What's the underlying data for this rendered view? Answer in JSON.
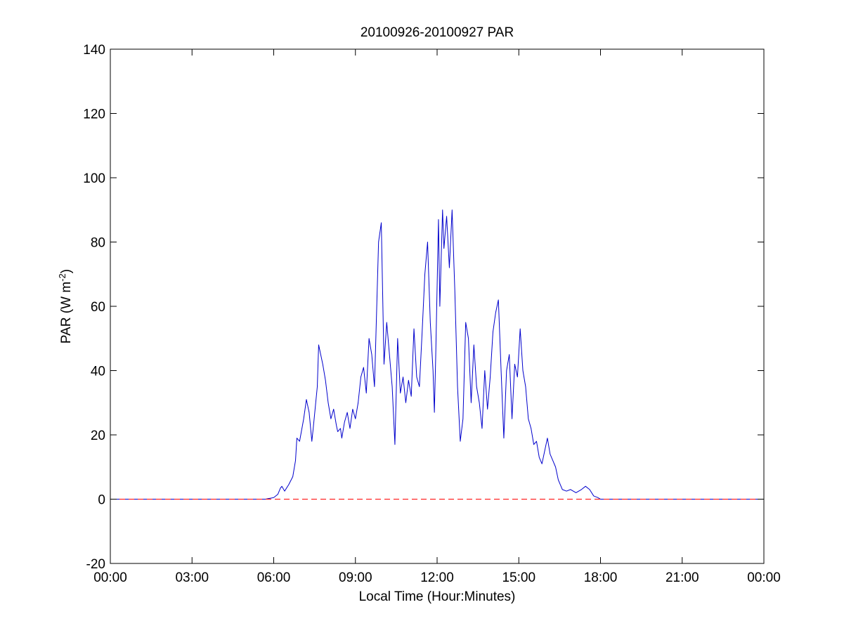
{
  "chart_data": {
    "type": "line",
    "title": "20100926-20100927 PAR",
    "xlabel": "Local Time (Hour:Minutes)",
    "ylabel": {
      "text": "PAR (W m",
      "superscript": "-2",
      "suffix": ")"
    },
    "xlim": [
      0,
      24
    ],
    "ylim": [
      -20,
      140
    ],
    "x_unit": "hours",
    "xticks": [
      {
        "value": 0,
        "label": "00:00"
      },
      {
        "value": 3,
        "label": "03:00"
      },
      {
        "value": 6,
        "label": "06:00"
      },
      {
        "value": 9,
        "label": "09:00"
      },
      {
        "value": 12,
        "label": "12:00"
      },
      {
        "value": 15,
        "label": "15:00"
      },
      {
        "value": 18,
        "label": "18:00"
      },
      {
        "value": 21,
        "label": "21:00"
      },
      {
        "value": 24,
        "label": "00:00"
      }
    ],
    "yticks": [
      {
        "value": -20,
        "label": "-20"
      },
      {
        "value": 0,
        "label": "0"
      },
      {
        "value": 20,
        "label": "20"
      },
      {
        "value": 40,
        "label": "40"
      },
      {
        "value": 60,
        "label": "60"
      },
      {
        "value": 80,
        "label": "80"
      },
      {
        "value": 100,
        "label": "100"
      },
      {
        "value": 120,
        "label": "120"
      },
      {
        "value": 140,
        "label": "140"
      }
    ],
    "grid": false,
    "reference_line": {
      "y": 0,
      "style": "dashed",
      "color": "#ff0000"
    },
    "series": [
      {
        "color": "#0000cc",
        "x": [
          0,
          5.7,
          6.0,
          6.15,
          6.25,
          6.3,
          6.4,
          6.55,
          6.7,
          6.8,
          6.85,
          6.95,
          7.1,
          7.2,
          7.3,
          7.4,
          7.45,
          7.6,
          7.65,
          7.8,
          7.9,
          8.0,
          8.1,
          8.2,
          8.3,
          8.35,
          8.45,
          8.5,
          8.6,
          8.7,
          8.8,
          8.9,
          9.0,
          9.1,
          9.2,
          9.3,
          9.4,
          9.5,
          9.6,
          9.7,
          9.8,
          9.85,
          9.95,
          10.05,
          10.15,
          10.25,
          10.35,
          10.45,
          10.55,
          10.65,
          10.75,
          10.85,
          10.95,
          11.05,
          11.15,
          11.25,
          11.35,
          11.45,
          11.55,
          11.65,
          11.75,
          11.85,
          11.9,
          11.95,
          12.05,
          12.1,
          12.2,
          12.25,
          12.35,
          12.45,
          12.55,
          12.65,
          12.75,
          12.85,
          12.95,
          13.05,
          13.15,
          13.25,
          13.35,
          13.45,
          13.55,
          13.65,
          13.75,
          13.85,
          13.95,
          14.05,
          14.15,
          14.25,
          14.35,
          14.45,
          14.55,
          14.65,
          14.75,
          14.85,
          14.95,
          15.05,
          15.15,
          15.25,
          15.35,
          15.45,
          15.55,
          15.65,
          15.75,
          15.85,
          15.95,
          16.05,
          16.15,
          16.25,
          16.35,
          16.45,
          16.6,
          16.75,
          16.9,
          17.1,
          17.3,
          17.45,
          17.6,
          17.75,
          17.9,
          18.0,
          18.2,
          24
        ],
        "y": [
          0,
          0,
          0.5,
          1.5,
          3.5,
          4,
          2.5,
          4.5,
          7,
          12,
          19,
          18,
          25,
          31,
          27,
          18,
          22,
          35,
          48,
          42,
          37,
          30,
          25,
          28,
          23,
          21,
          22,
          19,
          24,
          27,
          22,
          28,
          25,
          30,
          38,
          41,
          33,
          50,
          45,
          35,
          65,
          80,
          86,
          42,
          55,
          45,
          35,
          17,
          50,
          33,
          38,
          30,
          37,
          32,
          53,
          38,
          35,
          52,
          70,
          80,
          55,
          40,
          27,
          45,
          87,
          60,
          90,
          78,
          88,
          72,
          90,
          65,
          35,
          18,
          25,
          55,
          50,
          30,
          48,
          35,
          30,
          22,
          40,
          28,
          38,
          52,
          58,
          62,
          40,
          19,
          40,
          45,
          25,
          42,
          38,
          53,
          40,
          35,
          25,
          22,
          17,
          18,
          13,
          11,
          15,
          19,
          14,
          12,
          10,
          6,
          3,
          2.5,
          3,
          2,
          3,
          4,
          3,
          1,
          0.5,
          0,
          0,
          0
        ]
      }
    ]
  }
}
